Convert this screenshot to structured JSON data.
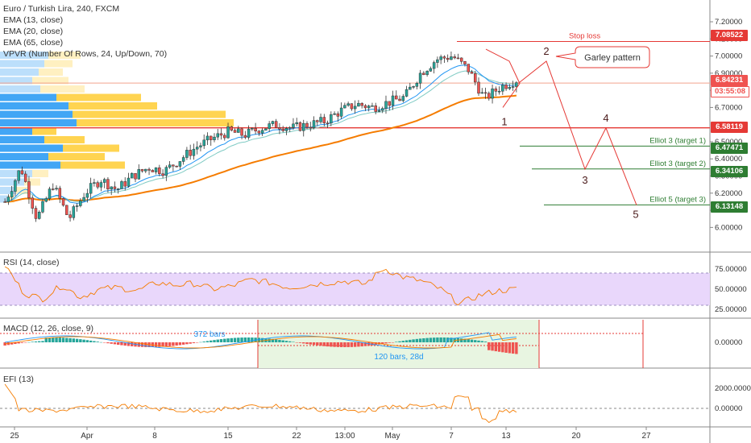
{
  "header": {
    "title": "Euro / Turkish Lira, 240, FXCM",
    "indicators": [
      "EMA (13, close)",
      "EMA (20, close)",
      "EMA (65, close)",
      "VPVR (Number Of Rows, 24, Up/Down, 70)"
    ]
  },
  "price_axis": {
    "ticks": [
      "7.20000",
      "7.10000",
      "7.00000",
      "6.90000",
      "6.80000",
      "6.70000",
      "6.50000",
      "6.40000",
      "6.30000",
      "6.20000",
      "6.10000",
      "6.00000"
    ]
  },
  "tags": {
    "stop_loss": "7.08522",
    "current": "6.84231",
    "countdown": "03:55:08",
    "support": "6.58119",
    "elliot3_t1": "6.47471",
    "elliot3_t2": "6.34106",
    "elliot5_t3": "6.13148"
  },
  "annotations": {
    "stop_loss": "Stop loss",
    "garley": "Garley pattern",
    "e3t1": "Elliot 3 (target 1)",
    "e3t2": "Elliot 3 (target 2)",
    "e5t3": "Elliot 5 (target 3)",
    "wave_labels": [
      "1",
      "2",
      "3",
      "4",
      "5"
    ]
  },
  "rsi": {
    "label": "RSI (14, close)",
    "ticks": [
      "75.00000",
      "50.00000",
      "25.00000"
    ]
  },
  "macd": {
    "label": "MACD (12, 26, close, 9)",
    "ticks": [
      "0.00000"
    ],
    "range_bars": "372 bars",
    "range_span": "120 bars, 28d"
  },
  "efi": {
    "label": "EFI (13)",
    "ticks": [
      "2000.00000",
      "0.00000"
    ]
  },
  "time_axis": {
    "labels": [
      "25",
      "Apr",
      "8",
      "15",
      "22",
      "13:00",
      "May",
      "7",
      "13",
      "20",
      "27"
    ]
  },
  "colors": {
    "up": "#26a69a",
    "down": "#ef5350",
    "ema13": "#2196f3",
    "ema20": "#80cbc4",
    "ema65": "#f57c00",
    "stop": "#e53935",
    "target": "#2e7d32",
    "rsi_band": "#e9d7fb",
    "vp_up": "#2196f3",
    "vp_down": "#ffcc33"
  },
  "chart_data": {
    "type": "candlestick",
    "symbol": "EUR/TRY",
    "timeframe": "240",
    "ylim": [
      5.95,
      7.28
    ],
    "levels": {
      "stop_loss": 7.08522,
      "support": 6.58119,
      "elliot3_target1": 6.47471,
      "elliot3_target2": 6.34106,
      "elliot5_target3": 6.13148,
      "last_price": 6.84231
    },
    "price_path": [
      6.15,
      6.35,
      6.05,
      6.25,
      6.05,
      6.2,
      6.28,
      6.22,
      6.3,
      6.35,
      6.33,
      6.4,
      6.47,
      6.52,
      6.56,
      6.54,
      6.58,
      6.6,
      6.58,
      6.6,
      6.62,
      6.68,
      6.72,
      6.7,
      6.73,
      6.76,
      6.9,
      6.98,
      7.0,
      6.92,
      6.75,
      6.82,
      6.86
    ],
    "projection": [
      {
        "label": "1",
        "price": 6.7
      },
      {
        "label": "2",
        "price": 6.97
      },
      {
        "label": "3",
        "price": 6.34
      },
      {
        "label": "4",
        "price": 6.58
      },
      {
        "label": "5",
        "price": 6.13
      }
    ],
    "rsi_band": [
      30,
      70
    ],
    "rsi_path": [
      80,
      45,
      38,
      55,
      40,
      50,
      52,
      48,
      58,
      55,
      57,
      50,
      54,
      62,
      58,
      52,
      55,
      58,
      60,
      56,
      76,
      65,
      60,
      50,
      32,
      42,
      48,
      50
    ]
  }
}
